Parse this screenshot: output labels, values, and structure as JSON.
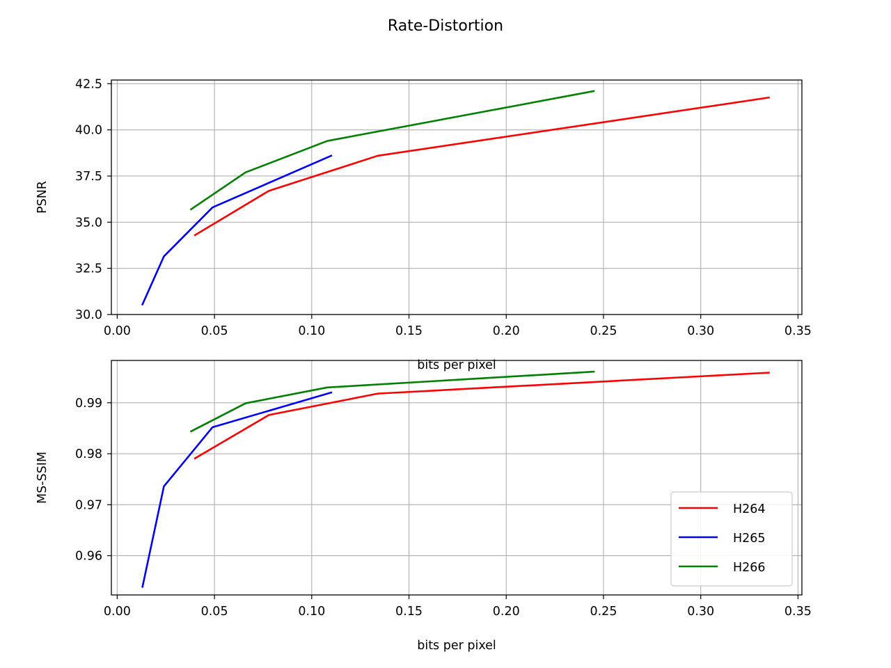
{
  "figure": {
    "suptitle": "Rate-Distortion",
    "colors": {
      "H264": "#ff0000",
      "H265": "#0000ff",
      "H266": "#008000",
      "grid": "#b0b0b0",
      "axes": "#000000"
    }
  },
  "chart_data": [
    {
      "type": "line",
      "title": "",
      "xlabel": "bits per pixel",
      "ylabel": "PSNR",
      "xlim": [
        -0.003,
        0.352
      ],
      "ylim": [
        30.0,
        42.7
      ],
      "xticks": [
        0.0,
        0.05,
        0.1,
        0.15,
        0.2,
        0.25,
        0.3,
        0.35
      ],
      "xtick_labels": [
        "0.00",
        "0.05",
        "0.10",
        "0.15",
        "0.20",
        "0.25",
        "0.30",
        "0.35"
      ],
      "yticks": [
        30.0,
        32.5,
        35.0,
        37.5,
        40.0,
        42.5
      ],
      "ytick_labels": [
        "30.0",
        "32.5",
        "35.0",
        "37.5",
        "40.0",
        "42.5"
      ],
      "grid": true,
      "series": [
        {
          "name": "H264",
          "color": "#ff0000",
          "x": [
            0.04,
            0.078,
            0.134,
            0.335
          ],
          "y": [
            34.3,
            36.7,
            38.6,
            41.75
          ]
        },
        {
          "name": "H265",
          "color": "#0000ff",
          "x": [
            0.013,
            0.024,
            0.049,
            0.11
          ],
          "y": [
            30.55,
            33.15,
            35.8,
            38.6
          ]
        },
        {
          "name": "H266",
          "color": "#008000",
          "x": [
            0.038,
            0.066,
            0.108,
            0.245
          ],
          "y": [
            35.7,
            37.7,
            39.4,
            42.1
          ]
        }
      ]
    },
    {
      "type": "line",
      "title": "",
      "xlabel": "bits per pixel",
      "ylabel": "MS-SSIM",
      "xlim": [
        -0.003,
        0.352
      ],
      "ylim": [
        0.9523,
        0.9983
      ],
      "xticks": [
        0.0,
        0.05,
        0.1,
        0.15,
        0.2,
        0.25,
        0.3,
        0.35
      ],
      "xtick_labels": [
        "0.00",
        "0.05",
        "0.10",
        "0.15",
        "0.20",
        "0.25",
        "0.30",
        "0.35"
      ],
      "yticks": [
        0.96,
        0.97,
        0.98,
        0.99
      ],
      "ytick_labels": [
        "0.96",
        "0.97",
        "0.98",
        "0.99"
      ],
      "grid": true,
      "legend": {
        "placement": "lower right",
        "entries": [
          "H264",
          "H265",
          "H266"
        ]
      },
      "series": [
        {
          "name": "H264",
          "color": "#ff0000",
          "x": [
            0.04,
            0.078,
            0.134,
            0.335
          ],
          "y": [
            0.9791,
            0.9876,
            0.9918,
            0.9959
          ]
        },
        {
          "name": "H265",
          "color": "#0000ff",
          "x": [
            0.013,
            0.024,
            0.049,
            0.11
          ],
          "y": [
            0.9539,
            0.9736,
            0.9852,
            0.992
          ]
        },
        {
          "name": "H266",
          "color": "#008000",
          "x": [
            0.038,
            0.066,
            0.108,
            0.245
          ],
          "y": [
            0.9844,
            0.9899,
            0.993,
            0.9961
          ]
        }
      ]
    }
  ]
}
